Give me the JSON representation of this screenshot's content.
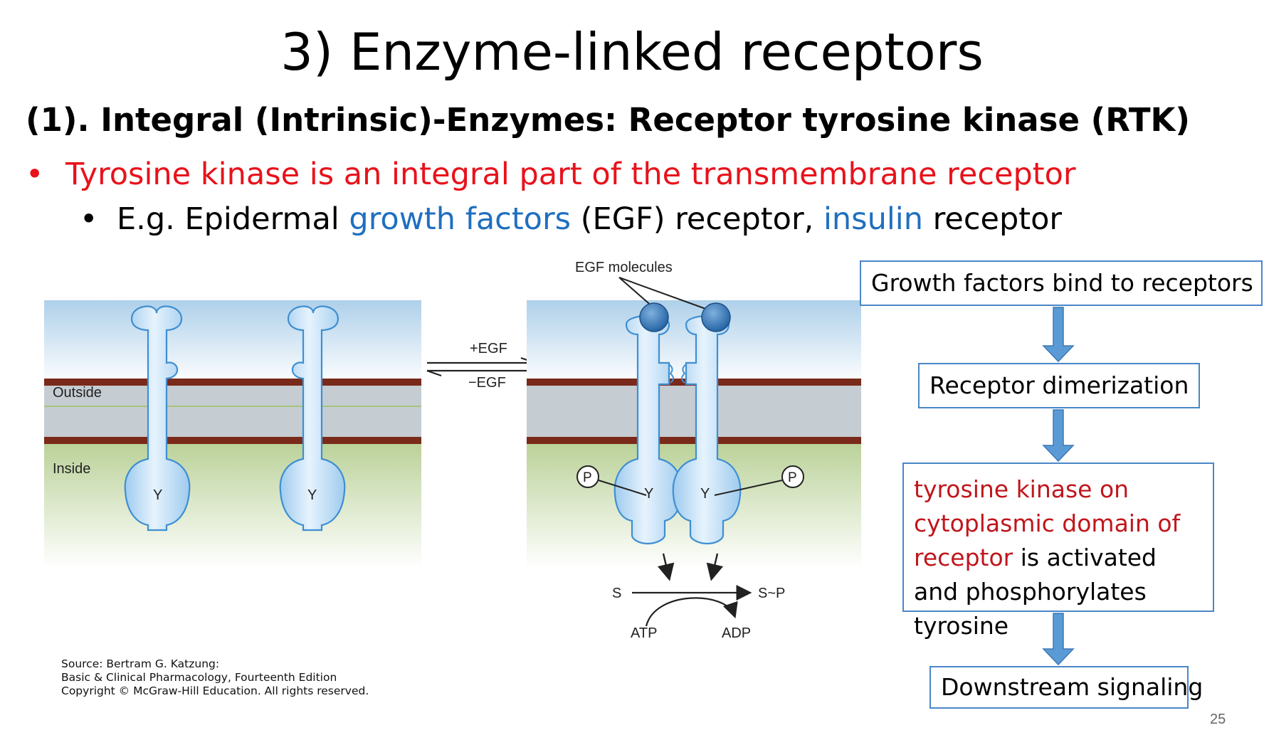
{
  "title": "3) Enzyme-linked receptors",
  "subtitle": "(1). Integral (Intrinsic)-Enzymes: Receptor tyrosine kinase (RTK)",
  "bullets": {
    "level1_marker": "•",
    "level1_text": "Tyrosine kinase is an integral part of the transmembrane receptor",
    "level2_marker": "•",
    "level2_parts": [
      "E.g. Epidermal ",
      "growth factors",
      " (EGF) receptor, ",
      "insulin",
      " receptor"
    ]
  },
  "figure": {
    "outside_label": "Outside",
    "inside_label": "Inside",
    "tyrosine_label": "Y",
    "phosphate_label": "P",
    "egf_molecules_label": "EGF molecules",
    "plus_egf": "+EGF",
    "minus_egf": "−EGF",
    "substrate": "S",
    "product": "S~P",
    "atp": "ATP",
    "adp": "ADP",
    "source_lines": [
      "Source: Bertram G. Katzung:",
      "Basic & Clinical Pharmacology, Fourteenth Edition",
      "Copyright © McGraw-Hill Education. All rights reserved."
    ]
  },
  "flowchart": {
    "step1": "Growth factors bind to receptors",
    "step2": "Receptor dimerization",
    "step3_red": "tyrosine kinase on cytoplasmic domain of receptor",
    "step3_black": " is activated and phosphorylates tyrosine",
    "step4": "Downstream signaling"
  },
  "page_number": "25",
  "colors": {
    "bullet_red": "#e8121b",
    "link_blue": "#1f6fbf",
    "flow_red": "#c0161c",
    "box_border": "#4a86c8",
    "arrow_blue": "#5b9bd5",
    "membrane_brown": "#7a2a1a",
    "cytoplasm_green": "#a9c77e",
    "receptor_blue": "#bcdcf4"
  }
}
